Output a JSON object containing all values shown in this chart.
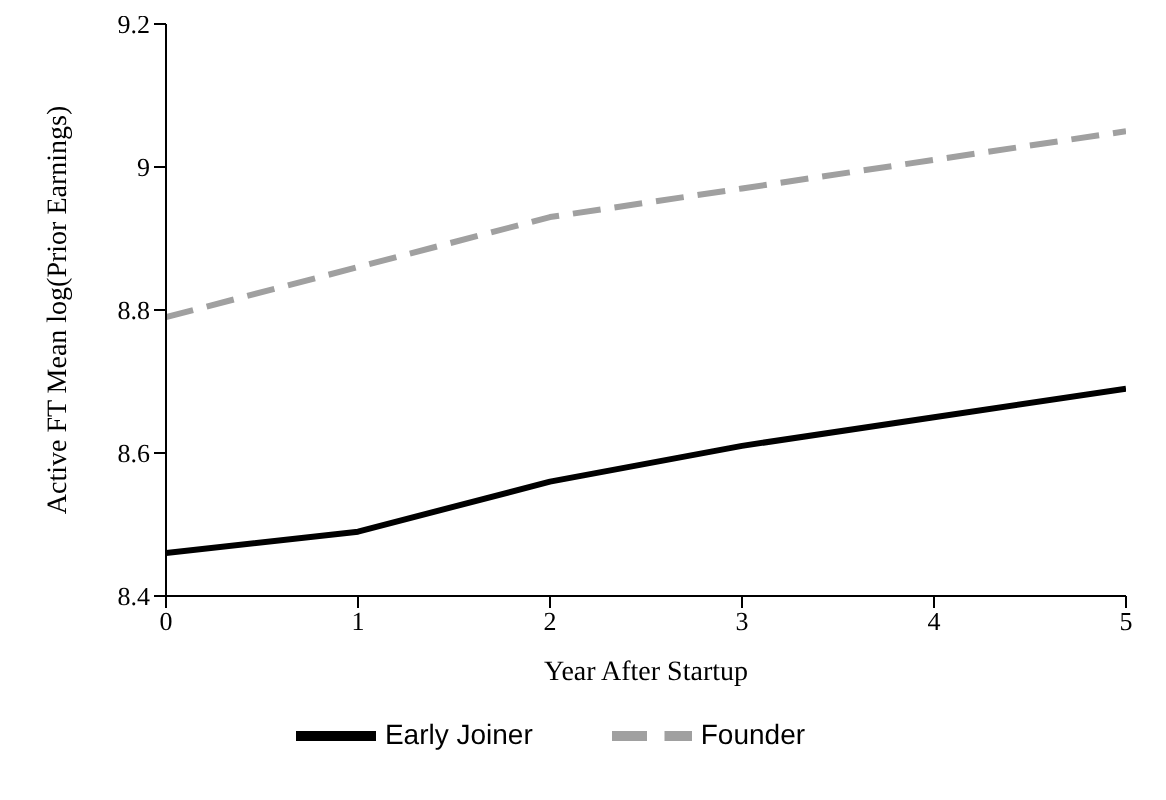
{
  "chart_data": {
    "type": "line",
    "xlabel": "Year After Startup",
    "ylabel": "Active FT Mean log(Prior Earnings)",
    "x": [
      0,
      1,
      2,
      3,
      4,
      5
    ],
    "series": [
      {
        "name": "Early Joiner",
        "color": "#000000",
        "line_style": "solid",
        "values": [
          8.46,
          8.49,
          8.56,
          8.61,
          8.65,
          8.69
        ]
      },
      {
        "name": "Founder",
        "color": "#a0a0a0",
        "line_style": "dashed",
        "values": [
          8.79,
          8.86,
          8.93,
          8.97,
          9.01,
          9.05
        ]
      }
    ],
    "xlim": [
      0,
      5
    ],
    "xticks": [
      0,
      1,
      2,
      3,
      4,
      5
    ],
    "ylim": [
      8.4,
      9.2
    ],
    "yticks": [
      8.4,
      8.6,
      8.8,
      9,
      9.2
    ],
    "grid": false,
    "legend": "bottom",
    "marker": "none"
  }
}
